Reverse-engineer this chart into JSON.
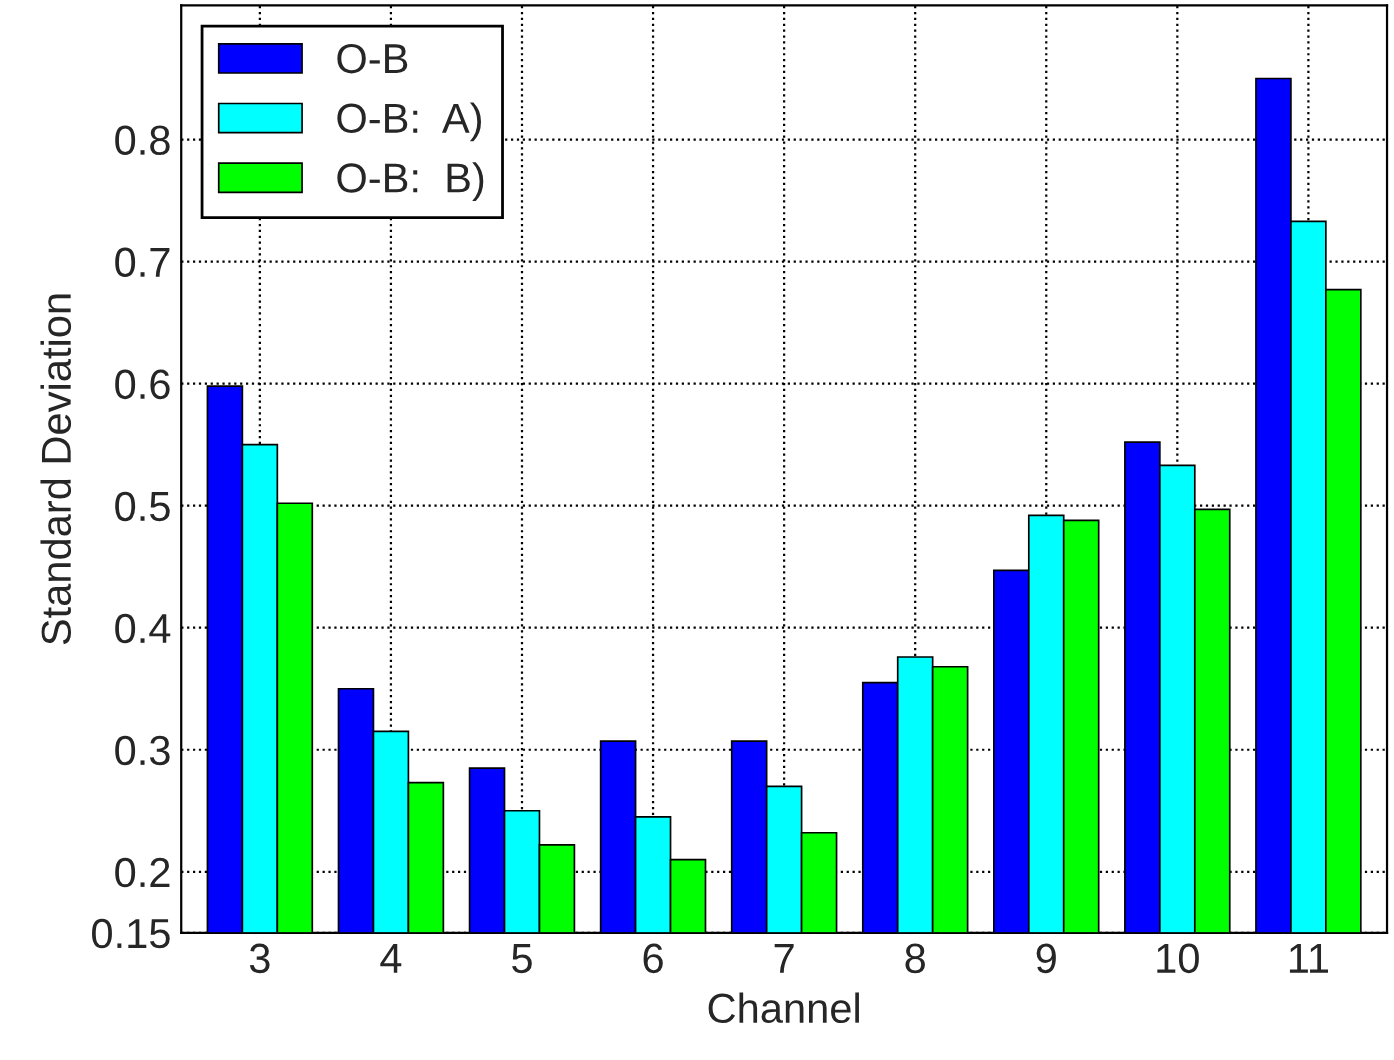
{
  "chart_data": {
    "type": "bar",
    "xlabel": "Channel",
    "ylabel": "Standard Deviation",
    "categories": [
      "3",
      "4",
      "5",
      "6",
      "7",
      "8",
      "9",
      "10",
      "11"
    ],
    "series": [
      {
        "name": "O-B",
        "color": "#0000ff",
        "values": [
          0.598,
          0.35,
          0.285,
          0.307,
          0.307,
          0.355,
          0.447,
          0.552,
          0.85
        ]
      },
      {
        "name": "O-B:  A)",
        "color": "#00ffff",
        "values": [
          0.55,
          0.315,
          0.25,
          0.245,
          0.27,
          0.376,
          0.492,
          0.533,
          0.733
        ]
      },
      {
        "name": "O-B:  B)",
        "color": "#00ff00",
        "values": [
          0.502,
          0.273,
          0.222,
          0.21,
          0.232,
          0.368,
          0.488,
          0.497,
          0.677
        ]
      }
    ],
    "ylim": [
      0.15,
      0.91
    ],
    "yticks": [
      0.15,
      0.2,
      0.3,
      0.4,
      0.5,
      0.6,
      0.7,
      0.8
    ],
    "grid": true,
    "legend": "top left"
  }
}
